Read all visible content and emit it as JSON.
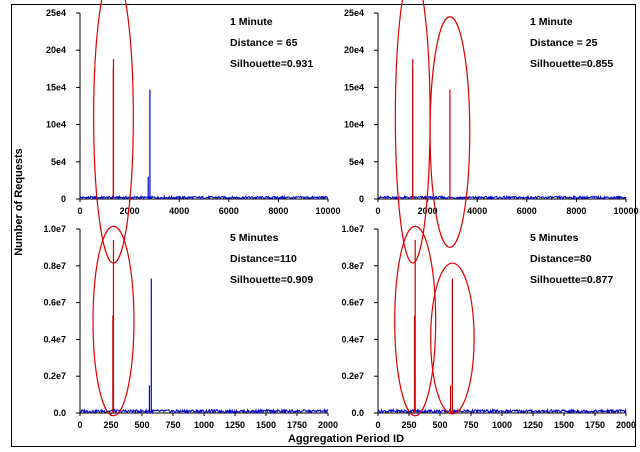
{
  "figure": {
    "ylabel": "Number of Requests",
    "xlabel": "Aggregation Period ID"
  },
  "chart_data": [
    {
      "type": "line",
      "panel": "top-left",
      "annotations": [
        "1 Minute",
        "Distance = 65",
        "Silhouette=0.931"
      ],
      "xlim": [
        0,
        10000
      ],
      "ylim": [
        0,
        250000
      ],
      "x_ticks": [
        0,
        2000,
        4000,
        6000,
        8000,
        10000
      ],
      "x_tick_labels": [
        "0",
        "2000",
        "4000",
        "6000",
        "8000",
        "10000"
      ],
      "y_ticks": [
        0,
        50000,
        100000,
        150000,
        200000,
        250000
      ],
      "y_tick_labels": [
        "0",
        "5e4",
        "10e4",
        "15e4",
        "20e4",
        "25e4"
      ],
      "baseline": 2000,
      "spikes": [
        {
          "x": 1350,
          "y": 188000,
          "color": "#cc0000"
        },
        {
          "x": 1345,
          "y": 175000,
          "color": "#cc0000"
        },
        {
          "x": 2750,
          "y": 30000,
          "color": "#0000cc"
        },
        {
          "x": 2820,
          "y": 147000,
          "color": "#0000cc"
        }
      ],
      "clusters": [
        {
          "x_center": 1350,
          "y_center": 110000,
          "x_half": 800,
          "y_half": 196000
        }
      ],
      "line_color": "#0000cc"
    },
    {
      "type": "line",
      "panel": "top-right",
      "annotations": [
        "1 Minute",
        "Distance = 25",
        "Silhouette=0.855"
      ],
      "xlim": [
        0,
        10000
      ],
      "ylim": [
        0,
        250000
      ],
      "x_ticks": [
        0,
        2000,
        4000,
        6000,
        8000,
        10000
      ],
      "x_tick_labels": [
        "0",
        "2000",
        "4000",
        "6000",
        "8000",
        "10000"
      ],
      "y_ticks": [
        0,
        50000,
        100000,
        150000,
        200000,
        250000
      ],
      "y_tick_labels": [
        "0",
        "5e4",
        "10e4",
        "15e4",
        "20e4",
        "25e4"
      ],
      "baseline": 2000,
      "spikes": [
        {
          "x": 1400,
          "y": 188000,
          "color": "#cc0000"
        },
        {
          "x": 1395,
          "y": 175000,
          "color": "#cc0000"
        },
        {
          "x": 2900,
          "y": 147000,
          "color": "#cc0000"
        }
      ],
      "clusters": [
        {
          "x_center": 1400,
          "y_center": 110000,
          "x_half": 700,
          "y_half": 196000
        },
        {
          "x_center": 2900,
          "y_center": 90000,
          "x_half": 800,
          "y_half": 155000
        }
      ],
      "line_color": "#0000cc"
    },
    {
      "type": "line",
      "panel": "bottom-left",
      "annotations": [
        "5 Minutes",
        "Distance=110",
        "Silhouette=0.909"
      ],
      "xlim": [
        0,
        2000
      ],
      "ylim": [
        0,
        10000000
      ],
      "x_ticks": [
        0,
        250,
        500,
        750,
        1000,
        1250,
        1500,
        1750,
        2000
      ],
      "x_tick_labels": [
        "0",
        "250",
        "500",
        "750",
        "1000",
        "1250",
        "1500",
        "1750",
        "2000"
      ],
      "y_ticks": [
        0,
        2000000,
        4000000,
        6000000,
        8000000,
        10000000
      ],
      "y_tick_labels": [
        "0.0",
        "0.2e7",
        "0.4e7",
        "0.6e7",
        "0.8e7",
        "1.0e7"
      ],
      "baseline": 100000,
      "spikes": [
        {
          "x": 270,
          "y": 9400000,
          "color": "#cc0000"
        },
        {
          "x": 265,
          "y": 5300000,
          "color": "#cc0000"
        },
        {
          "x": 560,
          "y": 1500000,
          "color": "#0000cc"
        },
        {
          "x": 575,
          "y": 7300000,
          "color": "#0000cc"
        }
      ],
      "clusters": [
        {
          "x_center": 270,
          "y_center": 5000000,
          "x_half": 165,
          "y_half": 5150000
        }
      ],
      "line_color": "#0000cc"
    },
    {
      "type": "line",
      "panel": "bottom-right",
      "annotations": [
        "5 Minutes",
        "Distance=80",
        "Silhouette=0.877"
      ],
      "xlim": [
        0,
        2000
      ],
      "ylim": [
        0,
        10000000
      ],
      "x_ticks": [
        0,
        250,
        500,
        750,
        1000,
        1250,
        1500,
        1750,
        2000
      ],
      "x_tick_labels": [
        "0",
        "250",
        "500",
        "750",
        "1000",
        "1250",
        "1500",
        "1750",
        "2000"
      ],
      "y_ticks": [
        0,
        2000000,
        4000000,
        6000000,
        8000000,
        10000000
      ],
      "y_tick_labels": [
        "0.0",
        "0.2e7",
        "0.4e7",
        "0.6e7",
        "0.8e7",
        "1.0e7"
      ],
      "baseline": 100000,
      "spikes": [
        {
          "x": 300,
          "y": 9400000,
          "color": "#cc0000"
        },
        {
          "x": 295,
          "y": 5300000,
          "color": "#cc0000"
        },
        {
          "x": 585,
          "y": 1500000,
          "color": "#cc0000"
        },
        {
          "x": 600,
          "y": 7300000,
          "color": "#cc0000"
        }
      ],
      "clusters": [
        {
          "x_center": 300,
          "y_center": 5000000,
          "x_half": 165,
          "y_half": 5150000
        },
        {
          "x_center": 600,
          "y_center": 4050000,
          "x_half": 175,
          "y_half": 4100000
        }
      ],
      "line_color": "#0000cc"
    }
  ]
}
